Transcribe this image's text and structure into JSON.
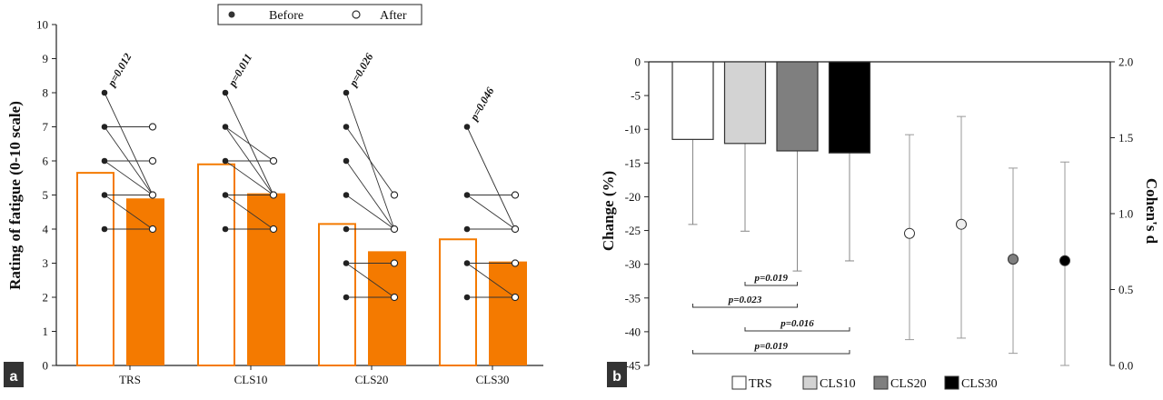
{
  "chart_data": [
    {
      "panel": "a",
      "type": "bar",
      "ylabel": "Rating of fatigue (0-10 scale)",
      "ylim": [
        0,
        10
      ],
      "yticks": [
        "0",
        "1",
        "2",
        "3",
        "4",
        "5",
        "6",
        "7",
        "8",
        "9",
        "10"
      ],
      "categories": [
        "TRS",
        "CLS10",
        "CLS20",
        "CLS30"
      ],
      "legend": {
        "before": "Before",
        "after": "After",
        "position": "top"
      },
      "series": [
        {
          "name": "Before",
          "values": [
            5.65,
            5.9,
            4.15,
            3.7
          ]
        },
        {
          "name": "After",
          "values": [
            4.9,
            5.05,
            3.35,
            3.05
          ]
        }
      ],
      "individual": [
        [
          [
            8,
            5
          ],
          [
            7,
            7
          ],
          [
            7,
            5
          ],
          [
            6,
            6
          ],
          [
            6,
            5
          ],
          [
            5,
            5
          ],
          [
            5,
            4
          ],
          [
            4,
            4
          ]
        ],
        [
          [
            8,
            5
          ],
          [
            7,
            6
          ],
          [
            7,
            5
          ],
          [
            6,
            6
          ],
          [
            6,
            5
          ],
          [
            5,
            5
          ],
          [
            5,
            4
          ],
          [
            4,
            4
          ]
        ],
        [
          [
            8,
            4
          ],
          [
            7,
            5
          ],
          [
            6,
            4
          ],
          [
            5,
            4
          ],
          [
            4,
            4
          ],
          [
            3,
            3
          ],
          [
            3,
            2
          ],
          [
            2,
            2
          ]
        ],
        [
          [
            7,
            4
          ],
          [
            5,
            5
          ],
          [
            5,
            4
          ],
          [
            4,
            4
          ],
          [
            3,
            3
          ],
          [
            3,
            2
          ],
          [
            3,
            3
          ],
          [
            2,
            2
          ]
        ]
      ],
      "p_values": [
        "p=0.012",
        "p=0.011",
        "p=0.026",
        "p=0.046"
      ],
      "colors": {
        "after_fill": "#f47a00",
        "before_edge": "#f47a00",
        "line": "#333333"
      }
    },
    {
      "panel": "b",
      "type": "bar",
      "ylabel": "Change (%)",
      "ylabel_right": "Cohen's d",
      "ylim": [
        -45,
        0
      ],
      "yticks": [
        "0",
        "-5",
        "-10",
        "-15",
        "-20",
        "-25",
        "-30",
        "-35",
        "-40",
        "-45"
      ],
      "y2lim": [
        0,
        2
      ],
      "y2ticks": [
        "0.0",
        "0.5",
        "1.0",
        "1.5",
        "2.0"
      ],
      "categories": [
        "TRS",
        "CLS10",
        "CLS20",
        "CLS30"
      ],
      "change_values": [
        -11.5,
        -12.1,
        -13.2,
        -13.5
      ],
      "change_error": [
        12.6,
        13.0,
        17.8,
        16.0
      ],
      "cohens_d": [
        0.87,
        0.93,
        0.7,
        0.69
      ],
      "cohens_d_ci": [
        [
          0.17,
          1.52
        ],
        [
          0.18,
          1.64
        ],
        [
          0.08,
          1.3
        ],
        [
          0.0,
          1.34
        ]
      ],
      "colors": [
        "#ffffff",
        "#d3d3d3",
        "#7f7f7f",
        "#000000"
      ],
      "comparisons": [
        {
          "label": "p=0.019",
          "from": 1,
          "to": 2
        },
        {
          "label": "p=0.023",
          "from": 0,
          "to": 2
        },
        {
          "label": "p=0.016",
          "from": 1,
          "to": 3
        },
        {
          "label": "p=0.019",
          "from": 0,
          "to": 3
        }
      ],
      "legend": [
        "TRS",
        "CLS10",
        "CLS20",
        "CLS30"
      ]
    }
  ]
}
